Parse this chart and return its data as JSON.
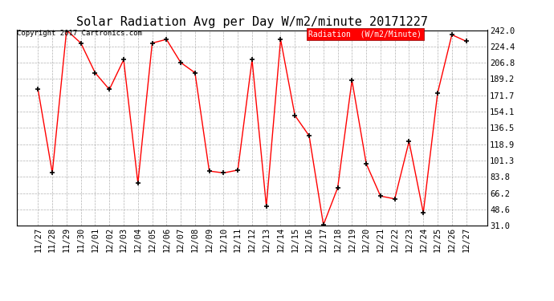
{
  "title": "Solar Radiation Avg per Day W/m2/minute 20171227",
  "copyright_text": "Copyright 2017 Cartronics.com",
  "legend_label": "Radiation  (W/m2/Minute)",
  "dates": [
    "11/27",
    "11/28",
    "11/29",
    "11/30",
    "12/01",
    "12/02",
    "12/03",
    "12/04",
    "12/05",
    "12/06",
    "12/07",
    "12/08",
    "12/09",
    "12/10",
    "12/11",
    "12/12",
    "12/13",
    "12/14",
    "12/15",
    "12/16",
    "12/17",
    "12/18",
    "12/19",
    "12/20",
    "12/21",
    "12/22",
    "12/23",
    "12/24",
    "12/25",
    "12/26",
    "12/27"
  ],
  "values": [
    178,
    88,
    242,
    228,
    196,
    178,
    210,
    77,
    228,
    232,
    207,
    196,
    90,
    88,
    91,
    210,
    52,
    232,
    150,
    128,
    32,
    72,
    188,
    98,
    63,
    60,
    122,
    45,
    174,
    237,
    230
  ],
  "line_color": "red",
  "marker_color": "black",
  "bg_color": "#ffffff",
  "plot_bg_color": "#ffffff",
  "grid_color": "#aaaaaa",
  "title_fontsize": 11,
  "tick_fontsize": 7.5,
  "ylim": [
    31.0,
    242.0
  ],
  "yticks": [
    31.0,
    48.6,
    66.2,
    83.8,
    101.3,
    118.9,
    136.5,
    154.1,
    171.7,
    189.2,
    206.8,
    224.4,
    242.0
  ]
}
